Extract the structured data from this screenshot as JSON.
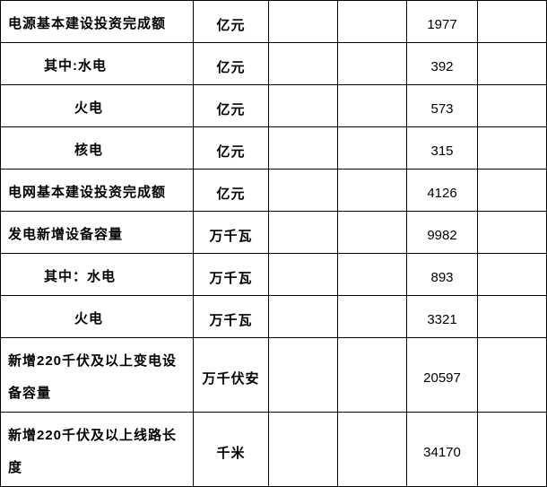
{
  "table": {
    "description": "electric-power-construction-statistics-table",
    "rows": [
      {
        "item": "电源基本建设投资完成额",
        "indent": 0,
        "unit": "亿元",
        "col3": "",
        "col4": "",
        "value": "1977",
        "col6": "",
        "h": "row-h43"
      },
      {
        "item": "其中:水电",
        "indent": 1,
        "unit": "亿元",
        "col3": "",
        "col4": "",
        "value": "392",
        "col6": "",
        "h": "row-h46"
      },
      {
        "item": "火电",
        "indent": 2,
        "unit": "亿元",
        "col3": "",
        "col4": "",
        "value": "573",
        "col6": "",
        "h": "row-h46"
      },
      {
        "item": "核电",
        "indent": 2,
        "unit": "亿元",
        "col3": "",
        "col4": "",
        "value": "315",
        "col6": "",
        "h": "row-h46"
      },
      {
        "item": "电网基本建设投资完成额",
        "indent": 0,
        "unit": "亿元",
        "col3": "",
        "col4": "",
        "value": "4126",
        "col6": "",
        "h": "row-h46"
      },
      {
        "item": "发电新增设备容量",
        "indent": 0,
        "unit": "万千瓦",
        "col3": "",
        "col4": "",
        "value": "9982",
        "col6": "",
        "h": "row-h45"
      },
      {
        "item": "其中：水电",
        "indent": 1,
        "unit": "万千瓦",
        "col3": "",
        "col4": "",
        "value": "893",
        "col6": "",
        "h": "row-h46"
      },
      {
        "item": "火电",
        "indent": 2,
        "unit": "万千瓦",
        "col3": "",
        "col4": "",
        "value": "3321",
        "col6": "",
        "h": "row-h46"
      },
      {
        "item": "新增220千伏及以上变电设备容量",
        "indent": 0,
        "unit": "万千伏安",
        "col3": "",
        "col4": "",
        "value": "20597",
        "col6": "",
        "h": "row-h75"
      },
      {
        "item": "新增220千伏及以上线路长度",
        "indent": 0,
        "unit": "千米",
        "col3": "",
        "col4": "",
        "value": "34170",
        "col6": "",
        "h": "row-h47"
      }
    ]
  }
}
